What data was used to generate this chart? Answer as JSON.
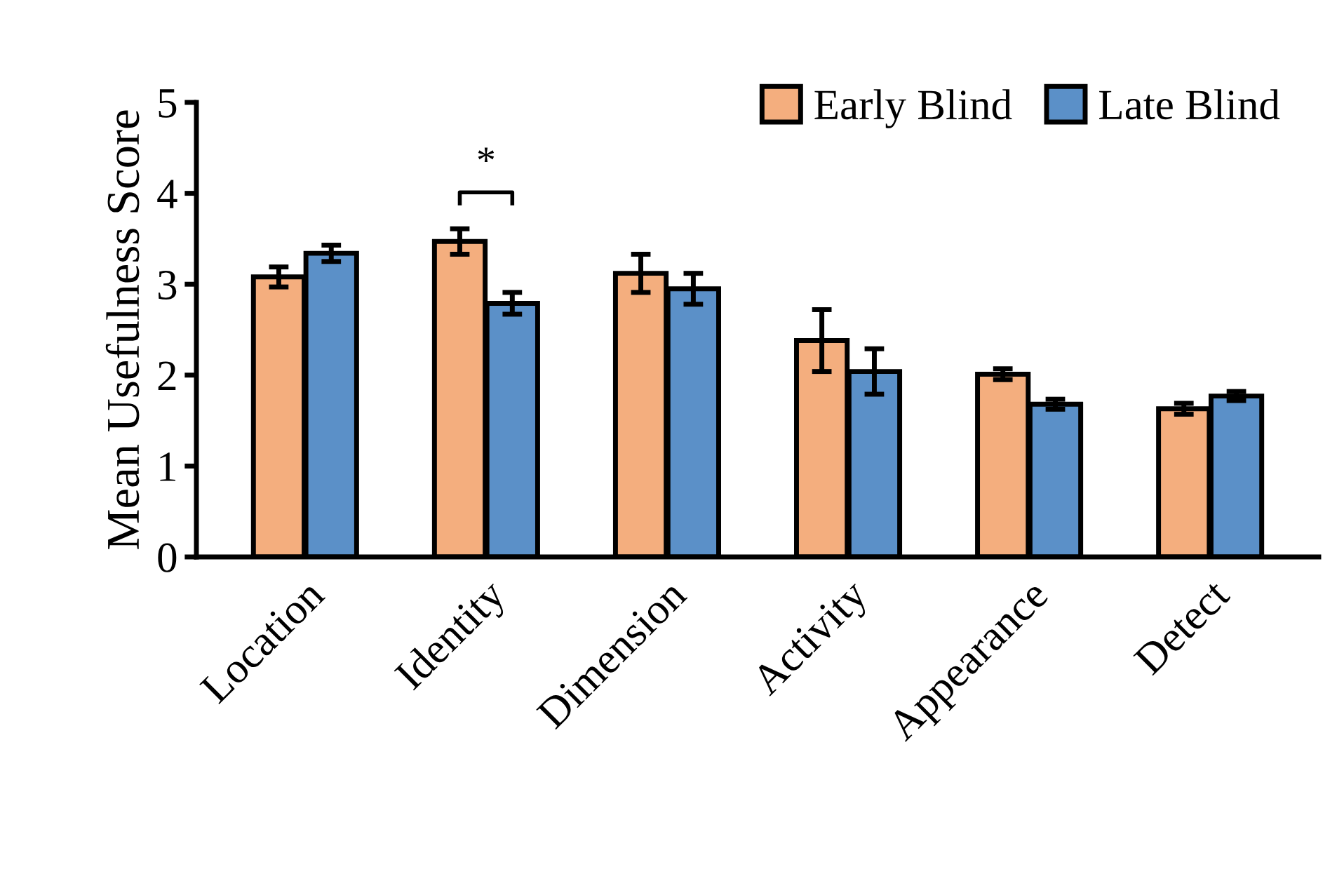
{
  "chart_data": {
    "type": "bar",
    "ylabel": "Mean Usefulness Score",
    "categories": [
      "Location",
      "Identity",
      "Dimension",
      "Activity",
      "Appearance",
      "Detect"
    ],
    "series": [
      {
        "name": "Early Blind",
        "color": "#f4ae7e",
        "values": [
          3.08,
          3.47,
          3.12,
          2.38,
          2.01,
          1.63
        ],
        "errors": [
          0.11,
          0.14,
          0.21,
          0.34,
          0.06,
          0.06
        ]
      },
      {
        "name": "Late Blind",
        "color": "#5b90c8",
        "values": [
          3.34,
          2.79,
          2.95,
          2.04,
          1.68,
          1.77
        ],
        "errors": [
          0.09,
          0.12,
          0.17,
          0.25,
          0.055,
          0.05
        ]
      }
    ],
    "ylim": [
      0,
      5
    ],
    "yticks": [
      0,
      1,
      2,
      3,
      4,
      5
    ],
    "annotations": [
      "*"
    ],
    "legend": "top right",
    "grid": false
  }
}
